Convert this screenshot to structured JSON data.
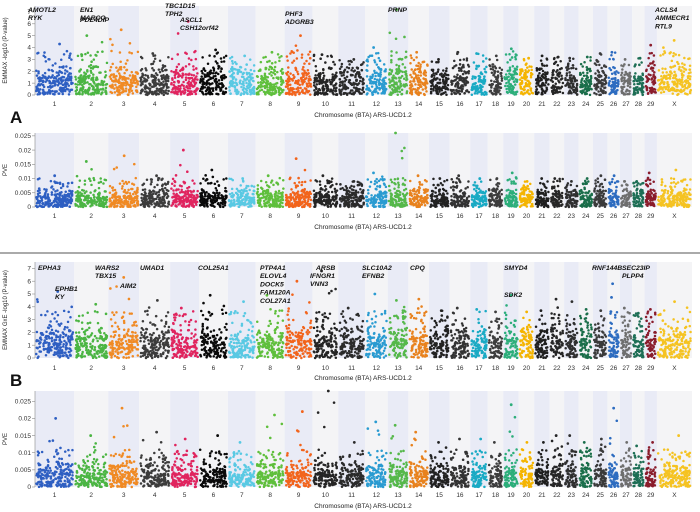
{
  "palette": [
    "#2e5fc2",
    "#4bb543",
    "#f08a24",
    "#3c3c3c",
    "#e0245e",
    "#0a0a0a",
    "#59c9e3",
    "#5fbf3c",
    "#f2641c",
    "#252525",
    "#2b2b2b",
    "#2a9bd1",
    "#55b84a",
    "#e8821e",
    "#222222",
    "#333333",
    "#19aac4",
    "#3d3d3d",
    "#2cae7a",
    "#f4b400",
    "#1f1f1f",
    "#262626",
    "#2f2f2f",
    "#1a6e4a",
    "#3a3a3a",
    "#2d6cc0",
    "#6e6e6e",
    "#1d6e55",
    "#8a1c2b",
    "#f5c322",
    "#a11a5a"
  ],
  "chart_data": [
    {
      "id": "A-gwas",
      "type": "scatter",
      "subtype": "manhattan",
      "panel": "A",
      "xlabel": "Chromosome (BTA) ARS-UCD1.2",
      "ylabel": "EMMAX -log10 (P-value)",
      "categories": [
        "1",
        "2",
        "3",
        "4",
        "5",
        "6",
        "7",
        "8",
        "9",
        "10",
        "11",
        "12",
        "13",
        "14",
        "15",
        "16",
        "17",
        "18",
        "19",
        "20",
        "21",
        "22",
        "23",
        "24",
        "25",
        "26",
        "27",
        "28",
        "29",
        "X"
      ],
      "ylim": [
        0,
        7.5
      ],
      "yticks": [
        0,
        1,
        2,
        3,
        4,
        5,
        6,
        7
      ],
      "peaks": [
        {
          "chr": "1",
          "value": 4.3
        },
        {
          "chr": "2",
          "value": 5.0
        },
        {
          "chr": "3",
          "value": 5.5
        },
        {
          "chr": "4",
          "value": 3.5
        },
        {
          "chr": "5",
          "value": 6.2
        },
        {
          "chr": "6",
          "value": 3.8
        },
        {
          "chr": "7",
          "value": 3.3
        },
        {
          "chr": "8",
          "value": 3.6
        },
        {
          "chr": "9",
          "value": 5.0
        },
        {
          "chr": "10",
          "value": 3.4
        },
        {
          "chr": "11",
          "value": 3.0
        },
        {
          "chr": "12",
          "value": 4.0
        },
        {
          "chr": "13",
          "value": 7.2
        },
        {
          "chr": "14",
          "value": 3.6
        },
        {
          "chr": "15",
          "value": 3.0
        },
        {
          "chr": "16",
          "value": 3.6
        },
        {
          "chr": "17",
          "value": 3.5
        },
        {
          "chr": "18",
          "value": 3.3
        },
        {
          "chr": "19",
          "value": 3.9
        },
        {
          "chr": "20",
          "value": 3.1
        },
        {
          "chr": "21",
          "value": 3.3
        },
        {
          "chr": "22",
          "value": 3.2
        },
        {
          "chr": "23",
          "value": 3.1
        },
        {
          "chr": "24",
          "value": 3.2
        },
        {
          "chr": "25",
          "value": 3.5
        },
        {
          "chr": "26",
          "value": 3.6
        },
        {
          "chr": "27",
          "value": 3.0
        },
        {
          "chr": "28",
          "value": 3.1
        },
        {
          "chr": "29",
          "value": 4.2
        },
        {
          "chr": "X",
          "value": 4.6
        }
      ],
      "annotations": [
        {
          "chr": "1",
          "labels": [
            "AMOTL2",
            "RYK"
          ]
        },
        {
          "chr": "2",
          "labels": [
            "EN1",
            "MARCO"
          ]
        },
        {
          "chr": "3",
          "labels": [
            "PDE4DIP"
          ]
        },
        {
          "chr": "5",
          "labels": [
            "TBC1D15",
            "TPH2"
          ]
        },
        {
          "chr": "5",
          "labels": [
            "ASCL1",
            "CSH12orf42"
          ]
        },
        {
          "chr": "9",
          "labels": [
            "PHF3",
            "ADGRB3"
          ]
        },
        {
          "chr": "13",
          "labels": [
            "PRNP"
          ]
        },
        {
          "chr": "X",
          "labels": [
            "ACLS4",
            "AMMECR1",
            "RTL9"
          ]
        }
      ]
    },
    {
      "id": "A-pve",
      "type": "scatter",
      "subtype": "pve",
      "panel": "A",
      "xlabel": "Chromosome (BTA) ARS-UCD1.2",
      "ylabel": "PVE",
      "categories": [
        "1",
        "2",
        "3",
        "4",
        "5",
        "6",
        "7",
        "8",
        "9",
        "10",
        "11",
        "12",
        "13",
        "14",
        "15",
        "16",
        "17",
        "18",
        "19",
        "20",
        "21",
        "22",
        "23",
        "24",
        "25",
        "26",
        "27",
        "28",
        "29",
        "X"
      ],
      "ylim": [
        0,
        0.026
      ],
      "yticks": [
        0,
        0.005,
        0.01,
        0.015,
        0.02,
        0.025
      ],
      "peaks": [
        {
          "chr": "1",
          "value": 0.011
        },
        {
          "chr": "2",
          "value": 0.016
        },
        {
          "chr": "3",
          "value": 0.018
        },
        {
          "chr": "4",
          "value": 0.011
        },
        {
          "chr": "5",
          "value": 0.02
        },
        {
          "chr": "6",
          "value": 0.013
        },
        {
          "chr": "7",
          "value": 0.01
        },
        {
          "chr": "8",
          "value": 0.011
        },
        {
          "chr": "9",
          "value": 0.017
        },
        {
          "chr": "10",
          "value": 0.011
        },
        {
          "chr": "11",
          "value": 0.009
        },
        {
          "chr": "12",
          "value": 0.012
        },
        {
          "chr": "13",
          "value": 0.026
        },
        {
          "chr": "14",
          "value": 0.011
        },
        {
          "chr": "15",
          "value": 0.01
        },
        {
          "chr": "16",
          "value": 0.011
        },
        {
          "chr": "17",
          "value": 0.01
        },
        {
          "chr": "18",
          "value": 0.01
        },
        {
          "chr": "19",
          "value": 0.012
        },
        {
          "chr": "20",
          "value": 0.009
        },
        {
          "chr": "21",
          "value": 0.01
        },
        {
          "chr": "22",
          "value": 0.01
        },
        {
          "chr": "23",
          "value": 0.009
        },
        {
          "chr": "24",
          "value": 0.01
        },
        {
          "chr": "25",
          "value": 0.011
        },
        {
          "chr": "26",
          "value": 0.011
        },
        {
          "chr": "27",
          "value": 0.009
        },
        {
          "chr": "28",
          "value": 0.009
        },
        {
          "chr": "29",
          "value": 0.012
        },
        {
          "chr": "X",
          "value": 0.013
        }
      ],
      "annotations": []
    },
    {
      "id": "B-gwas",
      "type": "scatter",
      "subtype": "manhattan",
      "panel": "B",
      "xlabel": "Chromosome (BTA) ARS-UCD1.2",
      "ylabel": "EMMAX GxE -log10 (P-value)",
      "categories": [
        "1",
        "2",
        "3",
        "4",
        "5",
        "6",
        "7",
        "8",
        "9",
        "10",
        "11",
        "12",
        "13",
        "14",
        "15",
        "16",
        "17",
        "18",
        "19",
        "20",
        "21",
        "22",
        "23",
        "24",
        "25",
        "26",
        "27",
        "28",
        "29",
        "X"
      ],
      "ylim": [
        0,
        7.5
      ],
      "yticks": [
        0,
        1,
        2,
        3,
        4,
        5,
        6,
        7
      ],
      "peaks": [
        {
          "chr": "1",
          "value": 5.2
        },
        {
          "chr": "2",
          "value": 4.2
        },
        {
          "chr": "3",
          "value": 6.3
        },
        {
          "chr": "4",
          "value": 4.5
        },
        {
          "chr": "5",
          "value": 3.9
        },
        {
          "chr": "6",
          "value": 4.9
        },
        {
          "chr": "7",
          "value": 4.4
        },
        {
          "chr": "8",
          "value": 4.9
        },
        {
          "chr": "9",
          "value": 6.0
        },
        {
          "chr": "10",
          "value": 6.8
        },
        {
          "chr": "11",
          "value": 3.9
        },
        {
          "chr": "12",
          "value": 5.0
        },
        {
          "chr": "13",
          "value": 4.5
        },
        {
          "chr": "14",
          "value": 4.6
        },
        {
          "chr": "15",
          "value": 3.7
        },
        {
          "chr": "16",
          "value": 3.9
        },
        {
          "chr": "17",
          "value": 3.8
        },
        {
          "chr": "18",
          "value": 3.6
        },
        {
          "chr": "19",
          "value": 4.9
        },
        {
          "chr": "20",
          "value": 3.6
        },
        {
          "chr": "21",
          "value": 3.7
        },
        {
          "chr": "22",
          "value": 4.6
        },
        {
          "chr": "23",
          "value": 4.4
        },
        {
          "chr": "24",
          "value": 3.8
        },
        {
          "chr": "25",
          "value": 3.7
        },
        {
          "chr": "26",
          "value": 5.8
        },
        {
          "chr": "27",
          "value": 3.9
        },
        {
          "chr": "28",
          "value": 3.5
        },
        {
          "chr": "29",
          "value": 3.8
        },
        {
          "chr": "X",
          "value": 4.4
        }
      ],
      "annotations": [
        {
          "chr": "1",
          "labels": [
            "EPHA3"
          ]
        },
        {
          "chr": "1",
          "labels": [
            "EPHB1",
            "KY"
          ]
        },
        {
          "chr": "3",
          "labels": [
            "WARS2",
            "TBX15"
          ]
        },
        {
          "chr": "3",
          "labels": [
            "AIM2"
          ]
        },
        {
          "chr": "4",
          "labels": [
            "UMAD1"
          ]
        },
        {
          "chr": "6",
          "labels": [
            "COL25A1"
          ]
        },
        {
          "chr": "8",
          "labels": [
            "PTP4A1",
            "ELOVL4",
            "DOCK5",
            "FAM120A",
            "COL27A1"
          ]
        },
        {
          "chr": "9",
          "labels": [
            "IFNGR1",
            "VNN3"
          ]
        },
        {
          "chr": "10",
          "labels": [
            "ARSB"
          ]
        },
        {
          "chr": "12",
          "labels": [
            "SLC10A2",
            "EFNB2"
          ]
        },
        {
          "chr": "14",
          "labels": [
            "CPQ"
          ]
        },
        {
          "chr": "19",
          "labels": [
            "SMYD4"
          ]
        },
        {
          "chr": "19",
          "labels": [
            "SDK2"
          ]
        },
        {
          "chr": "23",
          "labels": [
            "RNF144B"
          ]
        },
        {
          "chr": "26",
          "labels": [
            "SEC23IP",
            "PLPP4"
          ]
        }
      ]
    },
    {
      "id": "B-pve",
      "type": "scatter",
      "subtype": "pve",
      "panel": "B",
      "xlabel": "Chromosome (BTA) ARS-UCD1.2",
      "ylabel": "PVE",
      "categories": [
        "1",
        "2",
        "3",
        "4",
        "5",
        "6",
        "7",
        "8",
        "9",
        "10",
        "11",
        "12",
        "13",
        "14",
        "15",
        "16",
        "17",
        "18",
        "19",
        "20",
        "21",
        "22",
        "23",
        "24",
        "25",
        "26",
        "27",
        "28",
        "29",
        "X"
      ],
      "ylim": [
        0,
        0.028
      ],
      "yticks": [
        0,
        0.005,
        0.01,
        0.015,
        0.02,
        0.025
      ],
      "peaks": [
        {
          "chr": "1",
          "value": 0.02
        },
        {
          "chr": "2",
          "value": 0.015
        },
        {
          "chr": "3",
          "value": 0.023
        },
        {
          "chr": "4",
          "value": 0.016
        },
        {
          "chr": "5",
          "value": 0.014
        },
        {
          "chr": "6",
          "value": 0.015
        },
        {
          "chr": "7",
          "value": 0.013
        },
        {
          "chr": "8",
          "value": 0.021
        },
        {
          "chr": "9",
          "value": 0.022
        },
        {
          "chr": "10",
          "value": 0.028
        },
        {
          "chr": "11",
          "value": 0.013
        },
        {
          "chr": "12",
          "value": 0.019
        },
        {
          "chr": "13",
          "value": 0.018
        },
        {
          "chr": "14",
          "value": 0.016
        },
        {
          "chr": "15",
          "value": 0.013
        },
        {
          "chr": "16",
          "value": 0.014
        },
        {
          "chr": "17",
          "value": 0.014
        },
        {
          "chr": "18",
          "value": 0.013
        },
        {
          "chr": "19",
          "value": 0.024
        },
        {
          "chr": "20",
          "value": 0.013
        },
        {
          "chr": "21",
          "value": 0.013
        },
        {
          "chr": "22",
          "value": 0.015
        },
        {
          "chr": "23",
          "value": 0.015
        },
        {
          "chr": "24",
          "value": 0.013
        },
        {
          "chr": "25",
          "value": 0.014
        },
        {
          "chr": "26",
          "value": 0.023
        },
        {
          "chr": "27",
          "value": 0.013
        },
        {
          "chr": "28",
          "value": 0.012
        },
        {
          "chr": "29",
          "value": 0.013
        },
        {
          "chr": "X",
          "value": 0.015
        }
      ],
      "annotations": []
    }
  ],
  "panel_labels": [
    "A",
    "B"
  ]
}
